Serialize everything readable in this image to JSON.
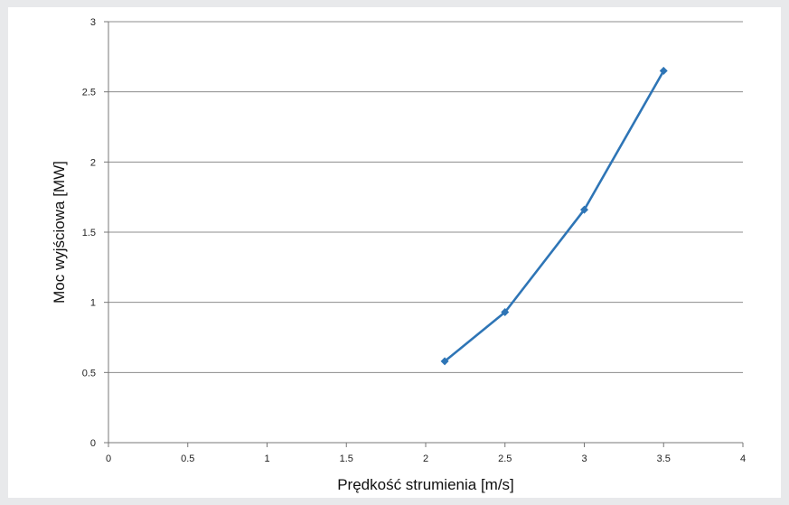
{
  "chart_data": {
    "type": "line",
    "title": "",
    "xlabel": "Prędkość strumienia [m/s]",
    "ylabel": "Moc wyjściowa [MW]",
    "xlim": [
      0,
      4
    ],
    "ylim": [
      0,
      3
    ],
    "x_ticks": [
      "0",
      "0.5",
      "1",
      "1.5",
      "2",
      "2.5",
      "3",
      "3.5",
      "4"
    ],
    "y_ticks": [
      "0",
      "0.5",
      "1",
      "1.5",
      "2",
      "2.5",
      "3"
    ],
    "grid": "horizontal",
    "legend": "none",
    "series": [
      {
        "color": "#2e75b6",
        "x": [
          2.12,
          2.5,
          3.0,
          3.5
        ],
        "y": [
          0.58,
          0.93,
          1.66,
          2.65
        ]
      }
    ]
  }
}
